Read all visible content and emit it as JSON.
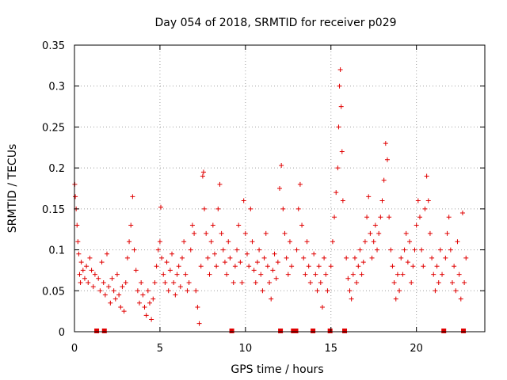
{
  "chart_data": {
    "type": "scatter",
    "title": "Day 054 of 2018, SRMTID for receiver p029",
    "xlabel": "GPS time / hours",
    "ylabel": "SRMTID / TECUs",
    "xlim": [
      0,
      24
    ],
    "ylim": [
      0,
      0.35
    ],
    "x_ticks": [
      0,
      5,
      10,
      15,
      20
    ],
    "y_ticks": [
      0,
      0.05,
      0.1,
      0.15,
      0.2,
      0.25,
      0.3,
      0.35
    ],
    "y_tick_labels": [
      "0",
      "0.05",
      "0.1",
      "0.15",
      "0.2",
      "0.25",
      "0.3",
      "0.35"
    ],
    "grid": true,
    "marker": "+",
    "color": "#e00000",
    "baseline_markers_x": [
      1.3,
      1.75,
      9.2,
      12.05,
      12.8,
      12.95,
      13.95,
      14.95,
      15.8,
      21.6,
      22.75
    ],
    "series": [
      {
        "name": "SRMTID",
        "points": [
          [
            0.02,
            0.18
          ],
          [
            0.05,
            0.165
          ],
          [
            0.1,
            0.15
          ],
          [
            0.15,
            0.13
          ],
          [
            0.2,
            0.11
          ],
          [
            0.25,
            0.095
          ],
          [
            0.3,
            0.07
          ],
          [
            0.35,
            0.06
          ],
          [
            0.4,
            0.085
          ],
          [
            0.5,
            0.075
          ],
          [
            0.6,
            0.065
          ],
          [
            0.7,
            0.08
          ],
          [
            0.8,
            0.06
          ],
          [
            0.9,
            0.09
          ],
          [
            1.0,
            0.075
          ],
          [
            1.1,
            0.055
          ],
          [
            1.2,
            0.07
          ],
          [
            1.4,
            0.065
          ],
          [
            1.5,
            0.05
          ],
          [
            1.6,
            0.085
          ],
          [
            1.7,
            0.06
          ],
          [
            1.8,
            0.045
          ],
          [
            1.9,
            0.095
          ],
          [
            2.0,
            0.055
          ],
          [
            2.1,
            0.035
          ],
          [
            2.2,
            0.065
          ],
          [
            2.3,
            0.05
          ],
          [
            2.4,
            0.04
          ],
          [
            2.5,
            0.07
          ],
          [
            2.6,
            0.045
          ],
          [
            2.7,
            0.03
          ],
          [
            2.8,
            0.055
          ],
          [
            2.9,
            0.025
          ],
          [
            3.0,
            0.06
          ],
          [
            3.1,
            0.09
          ],
          [
            3.2,
            0.11
          ],
          [
            3.3,
            0.13
          ],
          [
            3.4,
            0.165
          ],
          [
            3.5,
            0.1
          ],
          [
            3.6,
            0.075
          ],
          [
            3.7,
            0.05
          ],
          [
            3.8,
            0.035
          ],
          [
            3.9,
            0.06
          ],
          [
            4.0,
            0.045
          ],
          [
            4.1,
            0.03
          ],
          [
            4.2,
            0.02
          ],
          [
            4.3,
            0.05
          ],
          [
            4.4,
            0.035
          ],
          [
            4.5,
            0.015
          ],
          [
            4.6,
            0.04
          ],
          [
            4.7,
            0.06
          ],
          [
            4.8,
            0.08
          ],
          [
            4.9,
            0.1
          ],
          [
            5.0,
            0.11
          ],
          [
            5.05,
            0.152
          ],
          [
            5.1,
            0.09
          ],
          [
            5.2,
            0.07
          ],
          [
            5.3,
            0.06
          ],
          [
            5.4,
            0.085
          ],
          [
            5.5,
            0.05
          ],
          [
            5.6,
            0.075
          ],
          [
            5.7,
            0.095
          ],
          [
            5.8,
            0.06
          ],
          [
            5.9,
            0.045
          ],
          [
            6.0,
            0.07
          ],
          [
            6.1,
            0.08
          ],
          [
            6.2,
            0.055
          ],
          [
            6.3,
            0.09
          ],
          [
            6.4,
            0.11
          ],
          [
            6.5,
            0.07
          ],
          [
            6.6,
            0.05
          ],
          [
            6.7,
            0.06
          ],
          [
            6.8,
            0.1
          ],
          [
            6.9,
            0.13
          ],
          [
            7.0,
            0.12
          ],
          [
            7.1,
            0.05
          ],
          [
            7.2,
            0.03
          ],
          [
            7.3,
            0.01
          ],
          [
            7.4,
            0.08
          ],
          [
            7.5,
            0.19
          ],
          [
            7.55,
            0.195
          ],
          [
            7.6,
            0.15
          ],
          [
            7.7,
            0.12
          ],
          [
            7.8,
            0.09
          ],
          [
            7.9,
            0.07
          ],
          [
            8.0,
            0.11
          ],
          [
            8.1,
            0.13
          ],
          [
            8.2,
            0.095
          ],
          [
            8.3,
            0.08
          ],
          [
            8.4,
            0.15
          ],
          [
            8.5,
            0.18
          ],
          [
            8.6,
            0.12
          ],
          [
            8.7,
            0.1
          ],
          [
            8.8,
            0.085
          ],
          [
            8.9,
            0.07
          ],
          [
            9.0,
            0.11
          ],
          [
            9.1,
            0.09
          ],
          [
            9.3,
            0.06
          ],
          [
            9.4,
            0.08
          ],
          [
            9.5,
            0.1
          ],
          [
            9.6,
            0.13
          ],
          [
            9.7,
            0.085
          ],
          [
            9.8,
            0.06
          ],
          [
            9.9,
            0.16
          ],
          [
            10.0,
            0.12
          ],
          [
            10.1,
            0.095
          ],
          [
            10.2,
            0.08
          ],
          [
            10.3,
            0.15
          ],
          [
            10.4,
            0.11
          ],
          [
            10.5,
            0.075
          ],
          [
            10.6,
            0.06
          ],
          [
            10.7,
            0.085
          ],
          [
            10.8,
            0.1
          ],
          [
            10.9,
            0.07
          ],
          [
            11.0,
            0.05
          ],
          [
            11.1,
            0.09
          ],
          [
            11.2,
            0.12
          ],
          [
            11.3,
            0.08
          ],
          [
            11.4,
            0.06
          ],
          [
            11.5,
            0.04
          ],
          [
            11.6,
            0.075
          ],
          [
            11.7,
            0.095
          ],
          [
            11.8,
            0.065
          ],
          [
            11.9,
            0.085
          ],
          [
            12.0,
            0.175
          ],
          [
            12.1,
            0.203
          ],
          [
            12.2,
            0.15
          ],
          [
            12.3,
            0.12
          ],
          [
            12.4,
            0.09
          ],
          [
            12.5,
            0.07
          ],
          [
            12.6,
            0.11
          ],
          [
            12.7,
            0.08
          ],
          [
            13.0,
            0.1
          ],
          [
            13.1,
            0.15
          ],
          [
            13.2,
            0.18
          ],
          [
            13.3,
            0.13
          ],
          [
            13.4,
            0.09
          ],
          [
            13.5,
            0.07
          ],
          [
            13.6,
            0.11
          ],
          [
            13.7,
            0.08
          ],
          [
            13.8,
            0.06
          ],
          [
            14.0,
            0.095
          ],
          [
            14.1,
            0.07
          ],
          [
            14.2,
            0.05
          ],
          [
            14.3,
            0.08
          ],
          [
            14.4,
            0.06
          ],
          [
            14.5,
            0.03
          ],
          [
            14.6,
            0.09
          ],
          [
            14.7,
            0.07
          ],
          [
            14.8,
            0.05
          ],
          [
            15.0,
            0.08
          ],
          [
            15.1,
            0.11
          ],
          [
            15.2,
            0.14
          ],
          [
            15.3,
            0.17
          ],
          [
            15.4,
            0.2
          ],
          [
            15.45,
            0.25
          ],
          [
            15.5,
            0.3
          ],
          [
            15.55,
            0.32
          ],
          [
            15.6,
            0.275
          ],
          [
            15.65,
            0.22
          ],
          [
            15.7,
            0.16
          ],
          [
            15.9,
            0.09
          ],
          [
            16.0,
            0.065
          ],
          [
            16.1,
            0.05
          ],
          [
            16.2,
            0.04
          ],
          [
            16.3,
            0.07
          ],
          [
            16.4,
            0.09
          ],
          [
            16.5,
            0.06
          ],
          [
            16.6,
            0.08
          ],
          [
            16.7,
            0.1
          ],
          [
            16.8,
            0.07
          ],
          [
            16.9,
            0.085
          ],
          [
            17.0,
            0.11
          ],
          [
            17.1,
            0.14
          ],
          [
            17.2,
            0.165
          ],
          [
            17.3,
            0.12
          ],
          [
            17.4,
            0.09
          ],
          [
            17.5,
            0.11
          ],
          [
            17.6,
            0.13
          ],
          [
            17.7,
            0.1
          ],
          [
            17.8,
            0.12
          ],
          [
            17.9,
            0.14
          ],
          [
            18.0,
            0.16
          ],
          [
            18.1,
            0.185
          ],
          [
            18.2,
            0.23
          ],
          [
            18.3,
            0.21
          ],
          [
            18.4,
            0.14
          ],
          [
            18.5,
            0.1
          ],
          [
            18.6,
            0.08
          ],
          [
            18.7,
            0.06
          ],
          [
            18.8,
            0.04
          ],
          [
            18.9,
            0.07
          ],
          [
            19.0,
            0.05
          ],
          [
            19.1,
            0.09
          ],
          [
            19.2,
            0.07
          ],
          [
            19.3,
            0.1
          ],
          [
            19.4,
            0.12
          ],
          [
            19.5,
            0.085
          ],
          [
            19.6,
            0.11
          ],
          [
            19.7,
            0.06
          ],
          [
            19.8,
            0.08
          ],
          [
            19.9,
            0.1
          ],
          [
            20.0,
            0.13
          ],
          [
            20.1,
            0.16
          ],
          [
            20.2,
            0.14
          ],
          [
            20.3,
            0.1
          ],
          [
            20.4,
            0.08
          ],
          [
            20.5,
            0.15
          ],
          [
            20.6,
            0.19
          ],
          [
            20.7,
            0.16
          ],
          [
            20.8,
            0.12
          ],
          [
            20.9,
            0.09
          ],
          [
            21.0,
            0.07
          ],
          [
            21.1,
            0.05
          ],
          [
            21.2,
            0.08
          ],
          [
            21.3,
            0.06
          ],
          [
            21.4,
            0.1
          ],
          [
            21.5,
            0.07
          ],
          [
            21.7,
            0.09
          ],
          [
            21.8,
            0.12
          ],
          [
            21.9,
            0.14
          ],
          [
            22.0,
            0.1
          ],
          [
            22.1,
            0.06
          ],
          [
            22.2,
            0.08
          ],
          [
            22.3,
            0.05
          ],
          [
            22.4,
            0.11
          ],
          [
            22.5,
            0.07
          ],
          [
            22.6,
            0.04
          ],
          [
            22.7,
            0.145
          ],
          [
            22.8,
            0.06
          ],
          [
            22.9,
            0.09
          ]
        ]
      }
    ]
  }
}
